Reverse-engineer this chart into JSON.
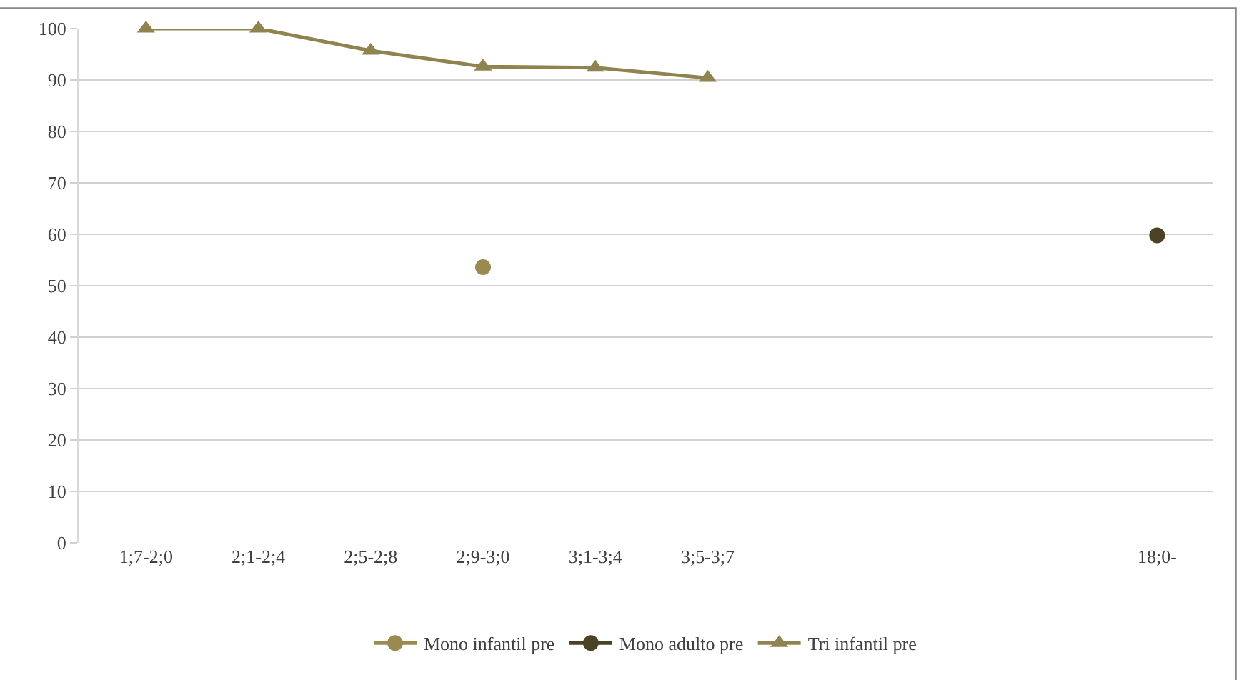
{
  "chart_data": {
    "type": "line",
    "categories": [
      "1;7-2;0",
      "2;1-2;4",
      "2;5-2;8",
      "2;9-3;0",
      "3;1-3;4",
      "3;5-3;7",
      null,
      null,
      null,
      "18;0-"
    ],
    "series": [
      {
        "name": "Mono infantil pre",
        "color": "#9a8a50",
        "marker": "circle",
        "values": [
          null,
          null,
          null,
          53.6,
          null,
          null,
          null,
          null,
          null,
          null
        ]
      },
      {
        "name": "Mono adulto pre",
        "color": "#4a4222",
        "marker": "circle",
        "values": [
          null,
          null,
          null,
          null,
          null,
          null,
          null,
          null,
          null,
          59.8
        ]
      },
      {
        "name": "Tri infantil pre",
        "color": "#8f8450",
        "marker": "triangle",
        "values": [
          100,
          100,
          95.7,
          92.6,
          92.4,
          90.4,
          null,
          null,
          null,
          null
        ]
      }
    ],
    "ylim": [
      0,
      100
    ],
    "yticks": [
      0,
      10,
      20,
      30,
      40,
      50,
      60,
      70,
      80,
      90,
      100
    ],
    "grid": "y",
    "legend": "bottom",
    "line_style": "solid"
  }
}
